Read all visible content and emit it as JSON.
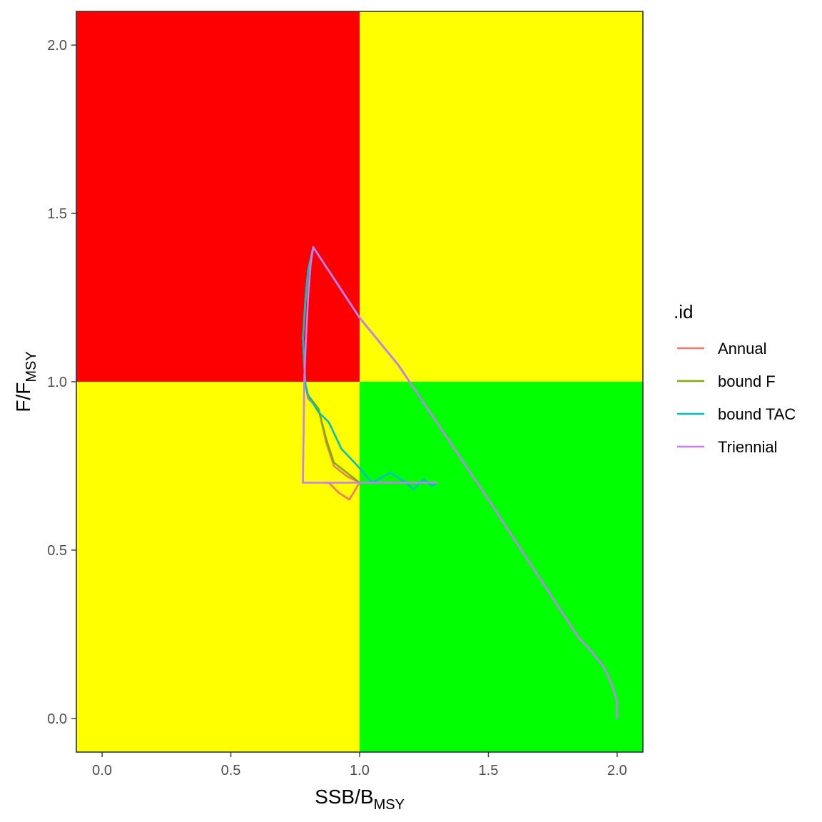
{
  "chart_data": {
    "type": "line",
    "xlabel": {
      "main": "SSB/B",
      "sub": "MSY"
    },
    "ylabel": {
      "main": "F/F",
      "sub": "MSY"
    },
    "xlim": [
      -0.1,
      2.1
    ],
    "ylim": [
      -0.1,
      2.1
    ],
    "x_ticks": [
      0.0,
      0.5,
      1.0,
      1.5,
      2.0
    ],
    "y_ticks": [
      0.0,
      0.5,
      1.0,
      1.5,
      2.0
    ],
    "x_tick_labels": [
      "0.0",
      "0.5",
      "1.0",
      "1.5",
      "2.0"
    ],
    "y_tick_labels": [
      "0.0",
      "0.5",
      "1.0",
      "1.5",
      "2.0"
    ],
    "grid": false,
    "legend": {
      "title": ".id",
      "position": "right"
    },
    "background_zones": [
      {
        "name": "overfished-overfishing",
        "x": [
          -0.1,
          1.0
        ],
        "y": [
          1.0,
          2.1
        ],
        "color": "#ff0000"
      },
      {
        "name": "healthy-overfishing",
        "x": [
          1.0,
          2.1
        ],
        "y": [
          1.0,
          2.1
        ],
        "color": "#ffff00"
      },
      {
        "name": "overfished-underfishing",
        "x": [
          -0.1,
          1.0
        ],
        "y": [
          -0.1,
          1.0
        ],
        "color": "#ffff00"
      },
      {
        "name": "healthy-underfishing",
        "x": [
          1.0,
          2.1
        ],
        "y": [
          -0.1,
          1.0
        ],
        "color": "#00ff00"
      }
    ],
    "series": [
      {
        "name": "Annual",
        "color": "#f8766d",
        "x": [
          2.0,
          2.0,
          1.98,
          1.95,
          1.9,
          1.85,
          1.5,
          1.15,
          1.0,
          0.82,
          0.8,
          0.79,
          0.78,
          0.785,
          0.79,
          0.8,
          0.84,
          0.87,
          0.9,
          0.95,
          1.0,
          0.96,
          0.92,
          0.88,
          0.86
        ],
        "y": [
          0.0,
          0.05,
          0.1,
          0.15,
          0.2,
          0.24,
          0.65,
          1.05,
          1.19,
          1.4,
          1.33,
          1.24,
          1.13,
          1.05,
          0.99,
          0.95,
          0.92,
          0.82,
          0.75,
          0.72,
          0.7,
          0.65,
          0.67,
          0.7,
          0.7
        ]
      },
      {
        "name": "bound F",
        "color": "#7cae00",
        "x": [
          2.0,
          2.0,
          1.98,
          1.95,
          1.9,
          1.85,
          1.5,
          1.15,
          1.0,
          0.82,
          0.8,
          0.79,
          0.78,
          0.785,
          0.79,
          0.8,
          0.84,
          0.87,
          0.9,
          0.95,
          1.0,
          1.05,
          1.1,
          1.2,
          1.3
        ],
        "y": [
          0.0,
          0.05,
          0.1,
          0.15,
          0.2,
          0.24,
          0.65,
          1.05,
          1.19,
          1.4,
          1.33,
          1.25,
          1.13,
          1.05,
          0.99,
          0.96,
          0.92,
          0.83,
          0.76,
          0.73,
          0.7,
          0.7,
          0.7,
          0.7,
          0.7
        ]
      },
      {
        "name": "bound TAC",
        "color": "#00bfc4",
        "x": [
          2.0,
          2.0,
          1.98,
          1.95,
          1.9,
          1.85,
          1.5,
          1.15,
          1.0,
          0.82,
          0.8,
          0.79,
          0.78,
          0.785,
          0.79,
          0.8,
          0.84,
          0.88,
          0.93,
          0.98,
          1.05,
          1.12,
          1.18,
          1.21,
          1.25,
          1.28,
          1.3
        ],
        "y": [
          0.0,
          0.05,
          0.1,
          0.15,
          0.2,
          0.24,
          0.65,
          1.05,
          1.19,
          1.4,
          1.33,
          1.25,
          1.13,
          1.05,
          0.99,
          0.96,
          0.91,
          0.88,
          0.8,
          0.76,
          0.7,
          0.73,
          0.7,
          0.68,
          0.71,
          0.69,
          0.7
        ]
      },
      {
        "name": "Triennial",
        "color": "#c77cff",
        "x": [
          2.0,
          2.0,
          1.98,
          1.95,
          1.9,
          1.85,
          1.5,
          1.15,
          1.0,
          0.82,
          0.81,
          0.8,
          0.79,
          0.785,
          0.78,
          1.3
        ],
        "y": [
          0.0,
          0.05,
          0.1,
          0.15,
          0.2,
          0.24,
          0.65,
          1.05,
          1.19,
          1.4,
          1.35,
          1.25,
          1.1,
          1.0,
          0.7,
          0.7
        ]
      }
    ]
  }
}
